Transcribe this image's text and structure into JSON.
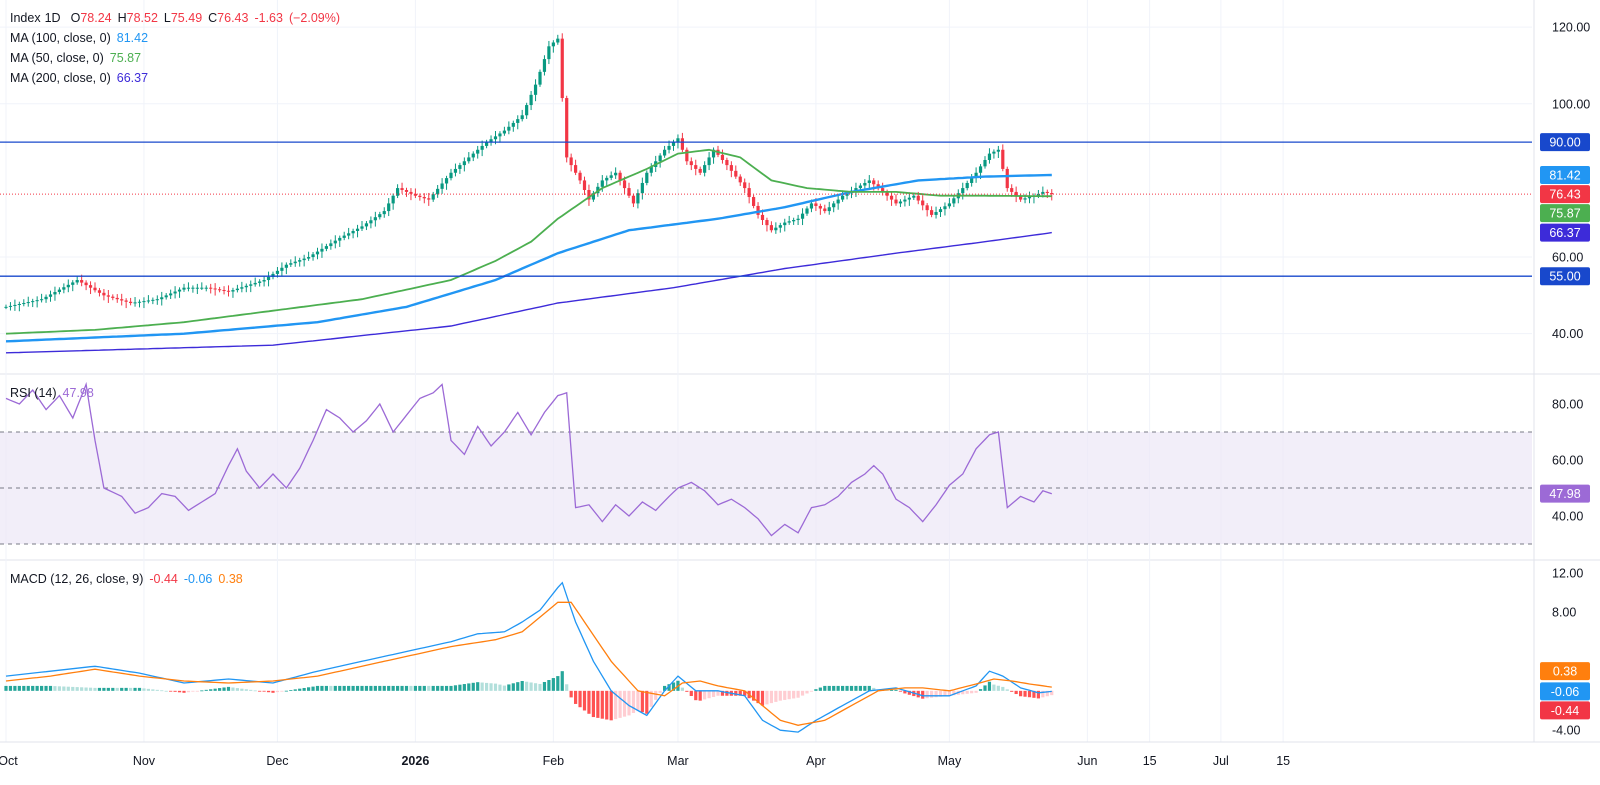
{
  "header": {
    "symbol": "Index",
    "interval": "1D",
    "open_label": "O",
    "open": "78.24",
    "high_label": "H",
    "high": "78.52",
    "low_label": "L",
    "low": "75.49",
    "close_label": "C",
    "close": "76.43",
    "change": "-1.63",
    "change_pct": "(−2.09%)"
  },
  "indicators": {
    "ma100": {
      "label": "MA (100, close, 0)",
      "value": "81.42",
      "color": "#2196f3"
    },
    "ma50": {
      "label": "MA (50, close, 0)",
      "value": "75.87",
      "color": "#4caf50"
    },
    "ma200": {
      "label": "MA (200, close, 0)",
      "value": "66.37",
      "color": "#3d2bd9"
    },
    "rsi": {
      "label": "RSI (14)",
      "value": "47.98",
      "color": "#9c6ad6"
    },
    "macd": {
      "label": "MACD (12, 26, close, 9)",
      "histogram": "-0.44",
      "macd": "-0.06",
      "signal": "0.38",
      "macd_color": "#2196f3",
      "signal_color": "#ff7f0e"
    }
  },
  "colors": {
    "up": "#089981",
    "down": "#f23645",
    "hline": "#1848cc",
    "hist_up_strong": "#26a69a",
    "hist_up_weak": "#b2dfdb",
    "hist_down_strong": "#ff5252",
    "hist_down_weak": "#ffcdd2",
    "rsi_band": "#ede7f6"
  },
  "chart_data": [
    {
      "type": "candlestick",
      "panel": "price",
      "y_range": [
        30,
        125
      ],
      "y_ticks": [
        "120.00",
        "100.00",
        "60.00",
        "40.00"
      ],
      "horizontal_lines": [
        {
          "value": 90,
          "label": "90.00"
        },
        {
          "value": 55,
          "label": "55.00"
        }
      ],
      "price_labels": [
        {
          "value": 81.42,
          "label": "81.42",
          "color": "#2196f3"
        },
        {
          "value": 76.43,
          "label": "76.43",
          "color": "#f23645"
        },
        {
          "value": 75.87,
          "label": "75.87",
          "color": "#4caf50"
        },
        {
          "value": 66.37,
          "label": "66.37",
          "color": "#3d2bd9"
        },
        {
          "value": 90,
          "label": "90.00",
          "color": "#1848cc"
        },
        {
          "value": 55,
          "label": "55.00",
          "color": "#1848cc"
        }
      ],
      "x_ticks": [
        "Oct",
        "Nov",
        "Dec",
        "2026",
        "Feb",
        "Mar",
        "Apr",
        "May",
        "Jun",
        "15",
        "Jul",
        "15"
      ],
      "x_tick_days": [
        0,
        31,
        61,
        92,
        123,
        151,
        182,
        212,
        243,
        257,
        273,
        287
      ],
      "close_anchors": [
        [
          0,
          47
        ],
        [
          8,
          49
        ],
        [
          16,
          54
        ],
        [
          22,
          50
        ],
        [
          28,
          48
        ],
        [
          34,
          49
        ],
        [
          40,
          52
        ],
        [
          45,
          52
        ],
        [
          50,
          51
        ],
        [
          58,
          54
        ],
        [
          63,
          58
        ],
        [
          68,
          60
        ],
        [
          75,
          65
        ],
        [
          80,
          68
        ],
        [
          85,
          72
        ],
        [
          88,
          78
        ],
        [
          92,
          76
        ],
        [
          95,
          75
        ],
        [
          100,
          82
        ],
        [
          104,
          86
        ],
        [
          108,
          90
        ],
        [
          112,
          93
        ],
        [
          116,
          97
        ],
        [
          119,
          105
        ],
        [
          122,
          115
        ],
        [
          124,
          117
        ],
        [
          126,
          86
        ],
        [
          129,
          80
        ],
        [
          131,
          75
        ],
        [
          134,
          80
        ],
        [
          137,
          82
        ],
        [
          141,
          74
        ],
        [
          144,
          82
        ],
        [
          148,
          88
        ],
        [
          151,
          91
        ],
        [
          153,
          85
        ],
        [
          156,
          82
        ],
        [
          159,
          88
        ],
        [
          162,
          84
        ],
        [
          166,
          78
        ],
        [
          169,
          71
        ],
        [
          172,
          67
        ],
        [
          175,
          69
        ],
        [
          178,
          70
        ],
        [
          181,
          74
        ],
        [
          184,
          72
        ],
        [
          188,
          76
        ],
        [
          191,
          78
        ],
        [
          194,
          80
        ],
        [
          197,
          77
        ],
        [
          200,
          74
        ],
        [
          204,
          76
        ],
        [
          208,
          71
        ],
        [
          212,
          74
        ],
        [
          215,
          78
        ],
        [
          218,
          82
        ],
        [
          221,
          87
        ],
        [
          223,
          88
        ],
        [
          225,
          78
        ],
        [
          228,
          75
        ],
        [
          231,
          76
        ],
        [
          233,
          77
        ],
        [
          235,
          76.43
        ]
      ],
      "ma50_anchors": [
        [
          0,
          40
        ],
        [
          20,
          41
        ],
        [
          40,
          43
        ],
        [
          60,
          46
        ],
        [
          80,
          49
        ],
        [
          100,
          54
        ],
        [
          110,
          59
        ],
        [
          118,
          64
        ],
        [
          124,
          70
        ],
        [
          134,
          78
        ],
        [
          144,
          83
        ],
        [
          151,
          87
        ],
        [
          158,
          88
        ],
        [
          165,
          86
        ],
        [
          172,
          80
        ],
        [
          180,
          78
        ],
        [
          190,
          77
        ],
        [
          200,
          77
        ],
        [
          210,
          76
        ],
        [
          220,
          76
        ],
        [
          235,
          75.87
        ]
      ],
      "ma100_anchors": [
        [
          0,
          38
        ],
        [
          40,
          40
        ],
        [
          70,
          43
        ],
        [
          90,
          47
        ],
        [
          110,
          54
        ],
        [
          124,
          61
        ],
        [
          140,
          67
        ],
        [
          160,
          70
        ],
        [
          175,
          73
        ],
        [
          190,
          77
        ],
        [
          205,
          80
        ],
        [
          220,
          81
        ],
        [
          235,
          81.42
        ]
      ],
      "ma200_anchors": [
        [
          0,
          35
        ],
        [
          60,
          37
        ],
        [
          100,
          42
        ],
        [
          124,
          48
        ],
        [
          150,
          52
        ],
        [
          175,
          57
        ],
        [
          200,
          61
        ],
        [
          220,
          64
        ],
        [
          235,
          66.37
        ]
      ]
    },
    {
      "type": "line",
      "panel": "rsi",
      "name": "RSI (14)",
      "y_range": [
        25,
        90
      ],
      "y_ticks": [
        "80.00",
        "60.00",
        "40.00"
      ],
      "band": [
        30,
        70
      ],
      "midline": 50,
      "value_label": "47.98",
      "anchors": [
        [
          0,
          82
        ],
        [
          3,
          80
        ],
        [
          6,
          85
        ],
        [
          9,
          78
        ],
        [
          12,
          83
        ],
        [
          15,
          75
        ],
        [
          18,
          87
        ],
        [
          20,
          67
        ],
        [
          22,
          50
        ],
        [
          26,
          47
        ],
        [
          29,
          41
        ],
        [
          32,
          43
        ],
        [
          35,
          48
        ],
        [
          38,
          47
        ],
        [
          41,
          42
        ],
        [
          44,
          45
        ],
        [
          47,
          48
        ],
        [
          50,
          58
        ],
        [
          52,
          64
        ],
        [
          54,
          56
        ],
        [
          57,
          50
        ],
        [
          60,
          55
        ],
        [
          63,
          50
        ],
        [
          66,
          57
        ],
        [
          69,
          67
        ],
        [
          72,
          78
        ],
        [
          75,
          75
        ],
        [
          78,
          70
        ],
        [
          81,
          74
        ],
        [
          84,
          80
        ],
        [
          87,
          70
        ],
        [
          90,
          76
        ],
        [
          93,
          82
        ],
        [
          96,
          84
        ],
        [
          98,
          87
        ],
        [
          100,
          67
        ],
        [
          103,
          62
        ],
        [
          106,
          72
        ],
        [
          109,
          65
        ],
        [
          112,
          70
        ],
        [
          115,
          77
        ],
        [
          118,
          69
        ],
        [
          121,
          77
        ],
        [
          124,
          83
        ],
        [
          126,
          84
        ],
        [
          128,
          43
        ],
        [
          131,
          44
        ],
        [
          134,
          38
        ],
        [
          137,
          44
        ],
        [
          140,
          40
        ],
        [
          143,
          45
        ],
        [
          146,
          42
        ],
        [
          149,
          47
        ],
        [
          151,
          50
        ],
        [
          154,
          52
        ],
        [
          157,
          49
        ],
        [
          160,
          44
        ],
        [
          163,
          46
        ],
        [
          166,
          43
        ],
        [
          169,
          39
        ],
        [
          172,
          33
        ],
        [
          175,
          37
        ],
        [
          178,
          34
        ],
        [
          181,
          43
        ],
        [
          184,
          44
        ],
        [
          187,
          47
        ],
        [
          190,
          52
        ],
        [
          193,
          55
        ],
        [
          195,
          58
        ],
        [
          197,
          55
        ],
        [
          200,
          46
        ],
        [
          203,
          43
        ],
        [
          206,
          38
        ],
        [
          209,
          44
        ],
        [
          212,
          51
        ],
        [
          215,
          55
        ],
        [
          218,
          64
        ],
        [
          221,
          69
        ],
        [
          223,
          70
        ],
        [
          225,
          43
        ],
        [
          228,
          47
        ],
        [
          231,
          45
        ],
        [
          233,
          49
        ],
        [
          235,
          47.98
        ]
      ]
    },
    {
      "type": "macd",
      "panel": "macd",
      "y_range": [
        -5,
        13
      ],
      "y_ticks": [
        "12.00",
        "8.00",
        "-4.00"
      ],
      "value_labels": [
        {
          "value": 0.38,
          "label": "0.38",
          "color": "#ff7f0e"
        },
        {
          "value": -0.06,
          "label": "-0.06",
          "color": "#2196f3"
        },
        {
          "value": -0.44,
          "label": "-0.44",
          "color": "#f23645"
        }
      ],
      "macd_anchors": [
        [
          0,
          1.5
        ],
        [
          10,
          2
        ],
        [
          20,
          2.5
        ],
        [
          30,
          1.8
        ],
        [
          40,
          0.8
        ],
        [
          50,
          1.2
        ],
        [
          60,
          0.8
        ],
        [
          70,
          2
        ],
        [
          80,
          3
        ],
        [
          90,
          4
        ],
        [
          100,
          5
        ],
        [
          106,
          5.8
        ],
        [
          112,
          6
        ],
        [
          116,
          7
        ],
        [
          120,
          8.2
        ],
        [
          124,
          10.5
        ],
        [
          125,
          11
        ],
        [
          128,
          7
        ],
        [
          132,
          3
        ],
        [
          136,
          0
        ],
        [
          140,
          -1.5
        ],
        [
          144,
          -2.5
        ],
        [
          148,
          0
        ],
        [
          151,
          1.5
        ],
        [
          155,
          0
        ],
        [
          160,
          0
        ],
        [
          166,
          -0.5
        ],
        [
          170,
          -3
        ],
        [
          174,
          -4
        ],
        [
          178,
          -4.2
        ],
        [
          182,
          -3
        ],
        [
          188,
          -1.5
        ],
        [
          194,
          0
        ],
        [
          200,
          0.3
        ],
        [
          206,
          -0.5
        ],
        [
          212,
          -0.5
        ],
        [
          218,
          0.5
        ],
        [
          221,
          2
        ],
        [
          224,
          1.5
        ],
        [
          228,
          0.3
        ],
        [
          232,
          -0.2
        ],
        [
          235,
          -0.06
        ]
      ],
      "signal_anchors": [
        [
          0,
          1
        ],
        [
          10,
          1.5
        ],
        [
          20,
          2.2
        ],
        [
          30,
          1.5
        ],
        [
          40,
          1
        ],
        [
          50,
          0.8
        ],
        [
          60,
          1
        ],
        [
          70,
          1.5
        ],
        [
          80,
          2.5
        ],
        [
          90,
          3.5
        ],
        [
          100,
          4.5
        ],
        [
          110,
          5.2
        ],
        [
          116,
          6
        ],
        [
          120,
          7.5
        ],
        [
          124,
          9
        ],
        [
          127,
          9
        ],
        [
          130,
          7
        ],
        [
          136,
          3
        ],
        [
          142,
          0
        ],
        [
          148,
          -0.5
        ],
        [
          152,
          0.8
        ],
        [
          156,
          1
        ],
        [
          160,
          0.5
        ],
        [
          166,
          0
        ],
        [
          170,
          -1.5
        ],
        [
          174,
          -3
        ],
        [
          178,
          -3.5
        ],
        [
          184,
          -3
        ],
        [
          190,
          -1.5
        ],
        [
          196,
          0
        ],
        [
          202,
          0.3
        ],
        [
          206,
          0.3
        ],
        [
          212,
          0
        ],
        [
          218,
          0.7
        ],
        [
          222,
          1.2
        ],
        [
          226,
          1
        ],
        [
          230,
          0.7
        ],
        [
          235,
          0.38
        ]
      ],
      "histogram_value": -0.44
    }
  ]
}
